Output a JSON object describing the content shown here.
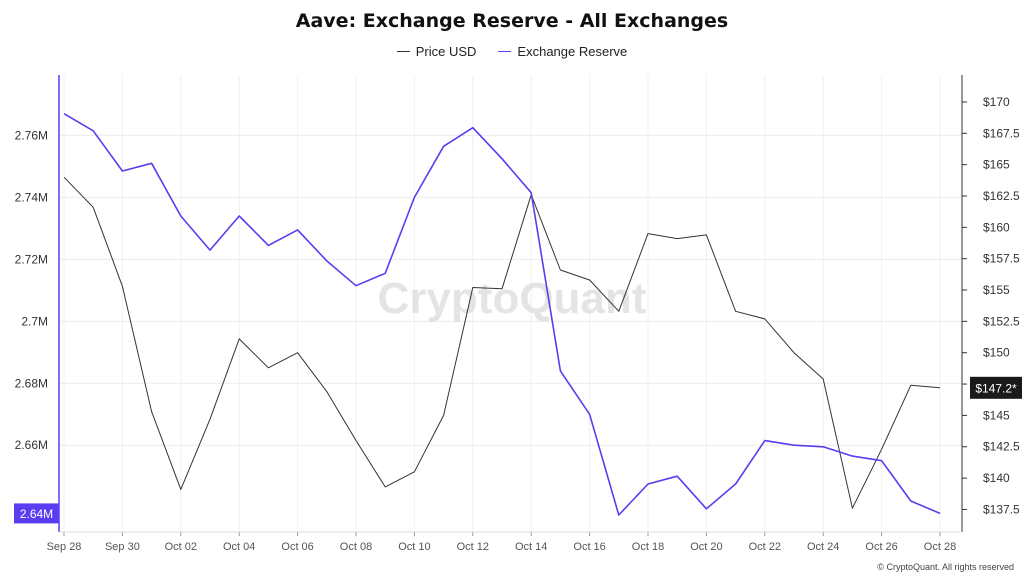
{
  "chart_data": {
    "type": "line",
    "title": "Aave: Exchange Reserve - All Exchanges",
    "categories": [
      "Sep 28",
      "Sep 29",
      "Sep 30",
      "Oct 01",
      "Oct 02",
      "Oct 03",
      "Oct 04",
      "Oct 05",
      "Oct 06",
      "Oct 07",
      "Oct 08",
      "Oct 09",
      "Oct 10",
      "Oct 11",
      "Oct 12",
      "Oct 13",
      "Oct 14",
      "Oct 15",
      "Oct 16",
      "Oct 17",
      "Oct 18",
      "Oct 19",
      "Oct 20",
      "Oct 21",
      "Oct 22",
      "Oct 23",
      "Oct 24",
      "Oct 25",
      "Oct 26",
      "Oct 27",
      "Oct 28"
    ],
    "x_tick_labels": [
      "Sep 28",
      "Sep 30",
      "Oct 02",
      "Oct 04",
      "Oct 06",
      "Oct 08",
      "Oct 10",
      "Oct 12",
      "Oct 14",
      "Oct 16",
      "Oct 18",
      "Oct 20",
      "Oct 22",
      "Oct 24",
      "Oct 26",
      "Oct 28"
    ],
    "series": [
      {
        "name": "Price USD",
        "axis": "right",
        "color": "#333333",
        "values": [
          164.0,
          161.6,
          155.3,
          145.3,
          139.1,
          144.7,
          151.1,
          148.8,
          150.0,
          146.9,
          143.0,
          139.3,
          140.5,
          145.0,
          155.2,
          155.1,
          162.6,
          156.6,
          155.8,
          153.3,
          159.5,
          159.1,
          159.4,
          153.3,
          152.7,
          150.0,
          147.9,
          137.6,
          142.3,
          147.4,
          147.2
        ]
      },
      {
        "name": "Exchange Reserve",
        "axis": "left",
        "color": "#5b3cf0",
        "values": [
          2.767,
          2.7615,
          2.7485,
          2.751,
          2.734,
          2.723,
          2.734,
          2.7245,
          2.7295,
          2.7195,
          2.7115,
          2.7155,
          2.74,
          2.7565,
          2.7625,
          2.7525,
          2.7415,
          2.684,
          2.67,
          2.6375,
          2.6475,
          2.65,
          2.6395,
          2.6475,
          2.6615,
          2.66,
          2.6595,
          2.6565,
          2.655,
          2.642,
          2.638
        ]
      }
    ],
    "y_left_ticks": [
      2.66,
      2.68,
      2.7,
      2.72,
      2.74,
      2.76
    ],
    "y_left_tick_labels": [
      "2.66M",
      "2.68M",
      "2.7M",
      "2.72M",
      "2.74M",
      "2.76M"
    ],
    "y_left_range": [
      2.632,
      2.7795
    ],
    "y_right_ticks": [
      137.5,
      140,
      142.5,
      145,
      147.5,
      150,
      152.5,
      155,
      157.5,
      160,
      162.5,
      165,
      167.5,
      170
    ],
    "y_right_tick_labels": [
      "$137.5",
      "$140",
      "$142.5",
      "$145",
      "$147.5",
      "$150",
      "$152.5",
      "$155",
      "$157.5",
      "$160",
      "$162.5",
      "$165",
      "$167.5",
      "$170"
    ],
    "y_right_range": [
      135.7,
      172.15
    ],
    "left_badge": "2.64M",
    "right_badge": "$147.2*",
    "grid": true,
    "legend_position": "top-center",
    "watermark": "CryptoQuant"
  },
  "footer": "© CryptoQuant. All rights reserved"
}
